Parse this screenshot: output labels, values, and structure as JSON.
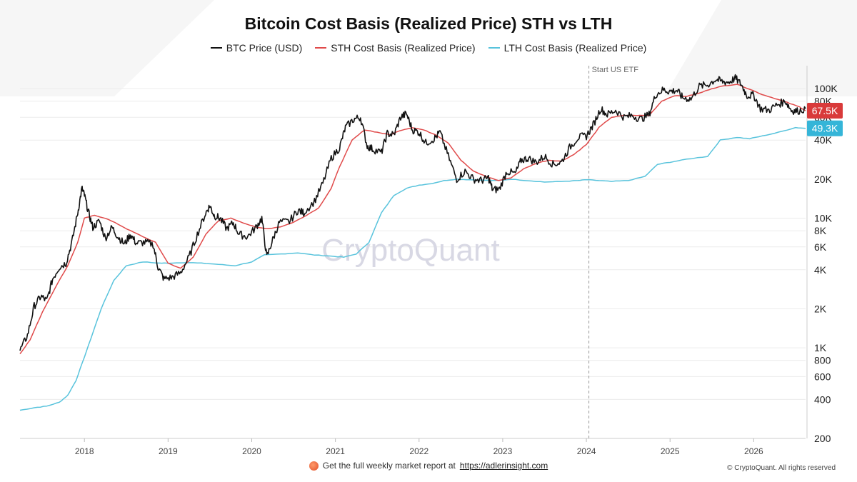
{
  "chart_data": {
    "type": "line",
    "title": "Bitcoin Cost Basis (Realized Price) STH vs LTH",
    "y_scale": "log",
    "ylim": [
      200,
      150000
    ],
    "xlim": [
      2017.23,
      2026.62
    ],
    "yticks": [
      {
        "value": 100000,
        "label": "100K"
      },
      {
        "value": 80000,
        "label": "80K"
      },
      {
        "value": 60000,
        "label": "60K"
      },
      {
        "value": 40000,
        "label": "40K"
      },
      {
        "value": 20000,
        "label": "20K"
      },
      {
        "value": 10000,
        "label": "10K"
      },
      {
        "value": 8000,
        "label": "8K"
      },
      {
        "value": 6000,
        "label": "6K"
      },
      {
        "value": 4000,
        "label": "4K"
      },
      {
        "value": 2000,
        "label": "2K"
      },
      {
        "value": 1000,
        "label": "1K"
      },
      {
        "value": 800,
        "label": "800"
      },
      {
        "value": 600,
        "label": "600"
      },
      {
        "value": 400,
        "label": "400"
      },
      {
        "value": 200,
        "label": "200"
      }
    ],
    "xticks": [
      {
        "value": 2018,
        "label": "2018"
      },
      {
        "value": 2019,
        "label": "2019"
      },
      {
        "value": 2020,
        "label": "2020"
      },
      {
        "value": 2021,
        "label": "2021"
      },
      {
        "value": 2022,
        "label": "2022"
      },
      {
        "value": 2023,
        "label": "2023"
      },
      {
        "value": 2024,
        "label": "2024"
      },
      {
        "value": 2025,
        "label": "2025"
      },
      {
        "value": 2026,
        "label": "2026"
      }
    ],
    "grid": true,
    "legend_position": "top-center",
    "series": [
      {
        "name": "BTC Price (USD)",
        "color": "#111111",
        "points": [
          [
            2017.23,
            950
          ],
          [
            2017.32,
            1250
          ],
          [
            2017.4,
            2100
          ],
          [
            2017.48,
            2500
          ],
          [
            2017.55,
            2300
          ],
          [
            2017.62,
            3400
          ],
          [
            2017.7,
            4200
          ],
          [
            2017.78,
            4500
          ],
          [
            2017.85,
            6500
          ],
          [
            2017.92,
            11000
          ],
          [
            2017.97,
            17000
          ],
          [
            2018.0,
            15000
          ],
          [
            2018.05,
            11000
          ],
          [
            2018.1,
            8500
          ],
          [
            2018.18,
            9500
          ],
          [
            2018.25,
            7000
          ],
          [
            2018.33,
            8500
          ],
          [
            2018.4,
            7200
          ],
          [
            2018.48,
            6300
          ],
          [
            2018.55,
            7500
          ],
          [
            2018.62,
            6400
          ],
          [
            2018.72,
            6500
          ],
          [
            2018.82,
            6300
          ],
          [
            2018.88,
            4200
          ],
          [
            2018.95,
            3400
          ],
          [
            2019.05,
            3500
          ],
          [
            2019.15,
            3800
          ],
          [
            2019.25,
            5000
          ],
          [
            2019.35,
            7500
          ],
          [
            2019.45,
            11000
          ],
          [
            2019.5,
            12500
          ],
          [
            2019.55,
            10500
          ],
          [
            2019.62,
            10000
          ],
          [
            2019.7,
            8300
          ],
          [
            2019.78,
            9200
          ],
          [
            2019.85,
            7500
          ],
          [
            2019.95,
            7200
          ],
          [
            2020.05,
            8500
          ],
          [
            2020.12,
            10000
          ],
          [
            2020.18,
            5000
          ],
          [
            2020.25,
            6800
          ],
          [
            2020.33,
            9300
          ],
          [
            2020.45,
            9400
          ],
          [
            2020.55,
            11500
          ],
          [
            2020.62,
            11000
          ],
          [
            2020.75,
            13500
          ],
          [
            2020.85,
            18500
          ],
          [
            2020.95,
            29000
          ],
          [
            2021.05,
            35000
          ],
          [
            2021.12,
            50000
          ],
          [
            2021.22,
            58000
          ],
          [
            2021.3,
            60000
          ],
          [
            2021.38,
            36000
          ],
          [
            2021.45,
            34000
          ],
          [
            2021.55,
            32000
          ],
          [
            2021.62,
            45000
          ],
          [
            2021.7,
            44000
          ],
          [
            2021.78,
            60000
          ],
          [
            2021.85,
            64000
          ],
          [
            2021.92,
            48000
          ],
          [
            2022.0,
            46000
          ],
          [
            2022.08,
            38000
          ],
          [
            2022.18,
            41000
          ],
          [
            2022.25,
            46000
          ],
          [
            2022.35,
            30000
          ],
          [
            2022.45,
            20000
          ],
          [
            2022.55,
            23000
          ],
          [
            2022.65,
            20000
          ],
          [
            2022.75,
            19500
          ],
          [
            2022.83,
            20500
          ],
          [
            2022.88,
            16500
          ],
          [
            2022.96,
            16800
          ],
          [
            2023.05,
            23000
          ],
          [
            2023.15,
            22000
          ],
          [
            2023.22,
            28000
          ],
          [
            2023.3,
            29000
          ],
          [
            2023.4,
            27000
          ],
          [
            2023.5,
            30000
          ],
          [
            2023.6,
            26000
          ],
          [
            2023.7,
            27000
          ],
          [
            2023.8,
            35000
          ],
          [
            2023.9,
            42000
          ],
          [
            2024.0,
            43000
          ],
          [
            2024.08,
            52000
          ],
          [
            2024.17,
            70000
          ],
          [
            2024.25,
            63000
          ],
          [
            2024.35,
            68000
          ],
          [
            2024.45,
            60000
          ],
          [
            2024.55,
            62000
          ],
          [
            2024.65,
            58000
          ],
          [
            2024.75,
            63000
          ],
          [
            2024.83,
            90000
          ],
          [
            2024.92,
            98000
          ],
          [
            2025.0,
            95000
          ],
          [
            2025.08,
            97000
          ],
          [
            2025.15,
            85000
          ],
          [
            2025.25,
            83000
          ],
          [
            2025.35,
            104000
          ],
          [
            2025.45,
            107000
          ],
          [
            2025.55,
            118000
          ],
          [
            2025.62,
            113000
          ],
          [
            2025.7,
            112000
          ],
          [
            2025.78,
            120000
          ],
          [
            2025.85,
            108000
          ],
          [
            2025.92,
            88000
          ],
          [
            2026.0,
            89000
          ],
          [
            2026.08,
            70000
          ],
          [
            2026.18,
            68000
          ],
          [
            2026.28,
            75000
          ],
          [
            2026.38,
            80000
          ],
          [
            2026.45,
            68000
          ],
          [
            2026.52,
            67000
          ],
          [
            2026.62,
            70000
          ]
        ]
      },
      {
        "name": "STH Cost Basis (Realized Price)",
        "color": "#e04a4a",
        "points": [
          [
            2017.23,
            900
          ],
          [
            2017.35,
            1150
          ],
          [
            2017.5,
            1900
          ],
          [
            2017.65,
            2900
          ],
          [
            2017.8,
            4300
          ],
          [
            2017.92,
            6500
          ],
          [
            2018.0,
            10000
          ],
          [
            2018.12,
            10500
          ],
          [
            2018.25,
            10000
          ],
          [
            2018.4,
            9000
          ],
          [
            2018.55,
            8000
          ],
          [
            2018.7,
            7200
          ],
          [
            2018.85,
            6500
          ],
          [
            2019.0,
            4500
          ],
          [
            2019.15,
            4100
          ],
          [
            2019.3,
            5000
          ],
          [
            2019.45,
            7500
          ],
          [
            2019.6,
            9500
          ],
          [
            2019.75,
            10000
          ],
          [
            2019.9,
            9200
          ],
          [
            2020.05,
            8500
          ],
          [
            2020.2,
            8300
          ],
          [
            2020.35,
            8600
          ],
          [
            2020.5,
            9300
          ],
          [
            2020.65,
            10500
          ],
          [
            2020.8,
            12000
          ],
          [
            2020.95,
            17000
          ],
          [
            2021.05,
            25000
          ],
          [
            2021.2,
            40000
          ],
          [
            2021.35,
            48000
          ],
          [
            2021.5,
            46000
          ],
          [
            2021.65,
            44000
          ],
          [
            2021.8,
            48000
          ],
          [
            2021.92,
            50000
          ],
          [
            2022.05,
            48000
          ],
          [
            2022.2,
            44000
          ],
          [
            2022.35,
            38000
          ],
          [
            2022.5,
            28000
          ],
          [
            2022.65,
            23000
          ],
          [
            2022.8,
            21000
          ],
          [
            2022.95,
            19500
          ],
          [
            2023.1,
            20500
          ],
          [
            2023.25,
            24000
          ],
          [
            2023.4,
            26500
          ],
          [
            2023.55,
            28000
          ],
          [
            2023.7,
            27500
          ],
          [
            2023.85,
            31000
          ],
          [
            2024.0,
            37000
          ],
          [
            2024.15,
            50000
          ],
          [
            2024.3,
            60000
          ],
          [
            2024.45,
            62000
          ],
          [
            2024.6,
            62000
          ],
          [
            2024.75,
            62000
          ],
          [
            2024.9,
            80000
          ],
          [
            2025.05,
            88000
          ],
          [
            2025.2,
            87000
          ],
          [
            2025.35,
            92000
          ],
          [
            2025.5,
            100000
          ],
          [
            2025.65,
            105000
          ],
          [
            2025.8,
            108000
          ],
          [
            2025.95,
            99000
          ],
          [
            2026.1,
            90000
          ],
          [
            2026.25,
            84000
          ],
          [
            2026.4,
            78000
          ],
          [
            2026.55,
            72000
          ],
          [
            2026.62,
            67500
          ]
        ]
      },
      {
        "name": "LTH Cost Basis (Realized Price)",
        "color": "#58c3dc",
        "points": [
          [
            2017.23,
            330
          ],
          [
            2017.4,
            345
          ],
          [
            2017.55,
            355
          ],
          [
            2017.7,
            380
          ],
          [
            2017.8,
            430
          ],
          [
            2017.9,
            560
          ],
          [
            2018.0,
            850
          ],
          [
            2018.1,
            1300
          ],
          [
            2018.2,
            2000
          ],
          [
            2018.35,
            3300
          ],
          [
            2018.5,
            4300
          ],
          [
            2018.7,
            4600
          ],
          [
            2018.9,
            4500
          ],
          [
            2019.0,
            4500
          ],
          [
            2019.2,
            4550
          ],
          [
            2019.4,
            4500
          ],
          [
            2019.6,
            4400
          ],
          [
            2019.8,
            4300
          ],
          [
            2020.0,
            4600
          ],
          [
            2020.15,
            5200
          ],
          [
            2020.35,
            5300
          ],
          [
            2020.55,
            5400
          ],
          [
            2020.75,
            5200
          ],
          [
            2020.95,
            5100
          ],
          [
            2021.1,
            5000
          ],
          [
            2021.25,
            5300
          ],
          [
            2021.4,
            6500
          ],
          [
            2021.55,
            11000
          ],
          [
            2021.7,
            15000
          ],
          [
            2021.85,
            17000
          ],
          [
            2022.0,
            18000
          ],
          [
            2022.15,
            18500
          ],
          [
            2022.3,
            19500
          ],
          [
            2022.45,
            20000
          ],
          [
            2022.6,
            19800
          ],
          [
            2022.8,
            19600
          ],
          [
            2022.95,
            19500
          ],
          [
            2023.1,
            20000
          ],
          [
            2023.3,
            19500
          ],
          [
            2023.5,
            19000
          ],
          [
            2023.7,
            19200
          ],
          [
            2023.9,
            19500
          ],
          [
            2024.0,
            19800
          ],
          [
            2024.15,
            19500
          ],
          [
            2024.3,
            19200
          ],
          [
            2024.5,
            19500
          ],
          [
            2024.7,
            21000
          ],
          [
            2024.85,
            26000
          ],
          [
            2025.0,
            27000
          ],
          [
            2025.2,
            28500
          ],
          [
            2025.45,
            30000
          ],
          [
            2025.6,
            40000
          ],
          [
            2025.8,
            42000
          ],
          [
            2025.95,
            41000
          ],
          [
            2026.1,
            43000
          ],
          [
            2026.3,
            46000
          ],
          [
            2026.5,
            50000
          ],
          [
            2026.62,
            49300
          ]
        ]
      }
    ],
    "annotations": [
      {
        "type": "vline",
        "x": 2024.03,
        "label": "Start US ETF"
      }
    ],
    "last_value_labels": [
      {
        "series": "STH Cost Basis (Realized Price)",
        "value": 67500,
        "label": "67.5K",
        "color": "#d93a3a"
      },
      {
        "series": "LTH Cost Basis (Realized Price)",
        "value": 49300,
        "label": "49.3K",
        "color": "#35b5d8"
      }
    ],
    "watermark": "CryptoQuant"
  },
  "footer": {
    "note": "Get the full weekly market report at",
    "link": "https://adlerinsight.com",
    "copyright": "© CryptoQuant. All rights reserved"
  }
}
